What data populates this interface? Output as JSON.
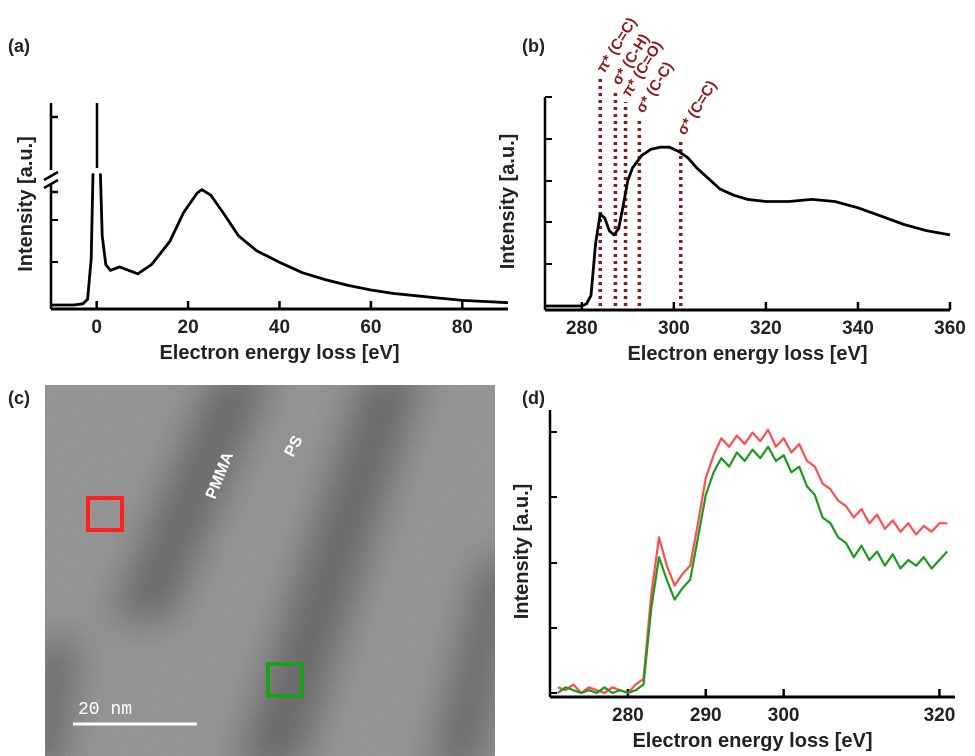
{
  "chart_data": [
    {
      "type": "line",
      "panel_label": "(a)",
      "xlabel": "Electron energy loss [eV]",
      "ylabel": "Intensity [a.u.]",
      "x": [
        -10,
        -5,
        -3,
        -2,
        -1.2,
        -0.8,
        0,
        0.8,
        1.2,
        2,
        3,
        5,
        7,
        9,
        12,
        16,
        19,
        22,
        23,
        25,
        28,
        31,
        35,
        40,
        45,
        50,
        55,
        60,
        65,
        70,
        75,
        80,
        85,
        90
      ],
      "series": [
        {
          "color": "#000000",
          "values": [
            0,
            0,
            0.01,
            0.05,
            0.4,
            1.14,
            null,
            1.14,
            0.6,
            0.35,
            0.3,
            0.33,
            0.3,
            0.27,
            0.35,
            0.55,
            0.8,
            0.97,
            1.0,
            0.95,
            0.78,
            0.6,
            0.47,
            0.37,
            0.28,
            0.22,
            0.17,
            0.13,
            0.1,
            0.08,
            0.06,
            0.04,
            0.03,
            0.02
          ]
        }
      ],
      "xlim": [
        -10,
        90
      ],
      "xticks": [
        0,
        20,
        40,
        60,
        80
      ],
      "ylim": [
        0,
        1.75
      ]
    },
    {
      "type": "line",
      "panel_label": "(b)",
      "xlabel": "Electron energy loss [eV]",
      "ylabel": "Intensity [a.u.]",
      "x": [
        272,
        278,
        280,
        281,
        282,
        283,
        284,
        285,
        286,
        287,
        288,
        289,
        290,
        291,
        293,
        295,
        297,
        299,
        301,
        303,
        305,
        308,
        310,
        313,
        316,
        320,
        325,
        330,
        335,
        340,
        345,
        350,
        355,
        360
      ],
      "series": [
        {
          "color": "#000000",
          "values": [
            0,
            0,
            0,
            0.01,
            0.05,
            0.3,
            0.44,
            0.42,
            0.36,
            0.34,
            0.37,
            0.48,
            0.6,
            0.66,
            0.72,
            0.75,
            0.76,
            0.76,
            0.74,
            0.71,
            0.66,
            0.6,
            0.56,
            0.53,
            0.51,
            0.5,
            0.5,
            0.51,
            0.5,
            0.47,
            0.43,
            0.39,
            0.36,
            0.34
          ]
        }
      ],
      "xlim": [
        272,
        360
      ],
      "xticks": [
        280,
        300,
        320,
        340,
        360
      ],
      "ylim": [
        0,
        1
      ],
      "annotation_color": "#8b1a1a",
      "annotations": [
        {
          "x": 284,
          "label": "π* (C=C)"
        },
        {
          "x": 287.3,
          "label": "σ* (C-H)"
        },
        {
          "x": 289.5,
          "label": "π* (C=O)"
        },
        {
          "x": 292.5,
          "label": "σ* (C-C)"
        },
        {
          "x": 301.5,
          "label": "σ* (C=C)"
        }
      ]
    },
    {
      "type": "image",
      "panel_label": "(c)",
      "labels": [
        "PMMA",
        "PS"
      ],
      "scale_bar": "20 nm"
    },
    {
      "type": "line",
      "panel_label": "(d)",
      "xlabel": "Electron energy loss [eV]",
      "ylabel": "Intensity [a.u.]",
      "x": [
        271,
        272,
        273,
        274,
        275,
        276,
        277,
        278,
        279,
        280,
        281,
        282,
        283,
        284,
        285,
        286,
        287,
        288,
        289,
        290,
        291,
        292,
        293,
        294,
        295,
        296,
        297,
        298,
        299,
        300,
        301,
        302,
        303,
        304,
        305,
        306,
        307,
        308,
        309,
        310,
        311,
        312,
        313,
        314,
        315,
        316,
        317,
        318,
        319,
        320,
        321
      ],
      "series": [
        {
          "color": "#ff4d4d",
          "values": [
            0.02,
            0.01,
            0.03,
            0.0,
            0.02,
            0.01,
            0.0,
            0.02,
            0.01,
            0.0,
            0.03,
            0.05,
            0.35,
            0.55,
            0.45,
            0.38,
            0.42,
            0.45,
            0.6,
            0.76,
            0.84,
            0.9,
            0.87,
            0.91,
            0.88,
            0.92,
            0.89,
            0.93,
            0.87,
            0.9,
            0.85,
            0.88,
            0.82,
            0.8,
            0.74,
            0.72,
            0.68,
            0.66,
            0.62,
            0.65,
            0.6,
            0.63,
            0.58,
            0.61,
            0.57,
            0.6,
            0.56,
            0.59,
            0.57,
            0.6,
            0.6
          ]
        },
        {
          "color": "#1a9a1a",
          "values": [
            0.0,
            0.02,
            0.01,
            0.0,
            0.01,
            0.0,
            0.02,
            0.0,
            0.01,
            0.0,
            0.01,
            0.03,
            0.3,
            0.48,
            0.4,
            0.33,
            0.37,
            0.4,
            0.55,
            0.7,
            0.78,
            0.83,
            0.8,
            0.85,
            0.82,
            0.86,
            0.83,
            0.87,
            0.82,
            0.84,
            0.78,
            0.8,
            0.73,
            0.7,
            0.62,
            0.6,
            0.55,
            0.53,
            0.48,
            0.52,
            0.47,
            0.5,
            0.45,
            0.49,
            0.44,
            0.47,
            0.45,
            0.48,
            0.44,
            0.47,
            0.5
          ]
        }
      ],
      "xlim": [
        270,
        322
      ],
      "xticks": [
        280,
        290,
        300,
        320
      ],
      "ylim": [
        0,
        1
      ]
    }
  ]
}
